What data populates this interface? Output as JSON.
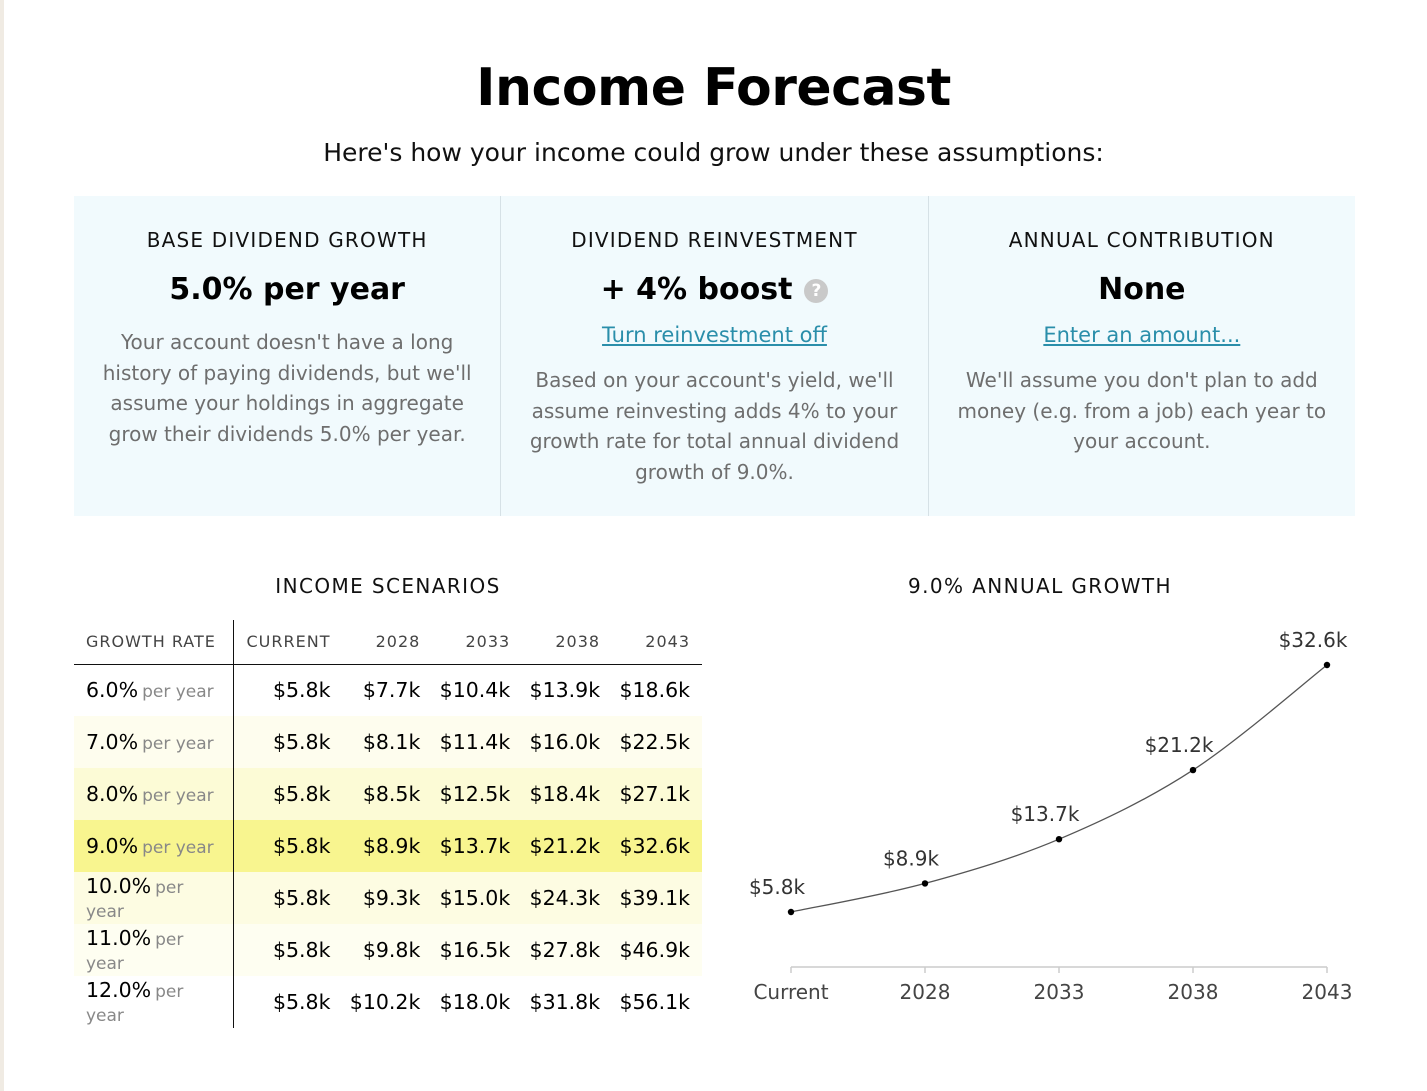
{
  "page": {
    "title": "Income Forecast",
    "subtitle": "Here's how your income could grow under these assumptions:"
  },
  "assumptions": [
    {
      "label": "BASE DIVIDEND GROWTH",
      "value": "5.0% per year",
      "description": "Your account doesn't have a long history of paying dividends, but we'll assume your holdings in aggregate grow their dividends 5.0% per year."
    },
    {
      "label": "DIVIDEND REINVESTMENT",
      "value": "+ 4% boost",
      "help_icon": "question-circle-icon",
      "link": "Turn reinvestment off",
      "description": "Based on your account's yield, we'll assume reinvesting adds 4% to your growth rate for total annual dividend growth of 9.0%."
    },
    {
      "label": "ANNUAL CONTRIBUTION",
      "value": "None",
      "link": "Enter an amount...",
      "description": "We'll assume you don't plan to add money (e.g. from a job) each year to your account."
    }
  ],
  "scenarios": {
    "title": "INCOME SCENARIOS",
    "headers": [
      "GROWTH RATE",
      "CURRENT",
      "2028",
      "2033",
      "2038",
      "2043"
    ],
    "per_year_label": "per year",
    "highlight_row": 3,
    "rows": [
      {
        "rate": "6.0%",
        "values": [
          "$5.8k",
          "$7.7k",
          "$10.4k",
          "$13.9k",
          "$18.6k"
        ]
      },
      {
        "rate": "7.0%",
        "values": [
          "$5.8k",
          "$8.1k",
          "$11.4k",
          "$16.0k",
          "$22.5k"
        ]
      },
      {
        "rate": "8.0%",
        "values": [
          "$5.8k",
          "$8.5k",
          "$12.5k",
          "$18.4k",
          "$27.1k"
        ]
      },
      {
        "rate": "9.0%",
        "values": [
          "$5.8k",
          "$8.9k",
          "$13.7k",
          "$21.2k",
          "$32.6k"
        ]
      },
      {
        "rate": "10.0%",
        "values": [
          "$5.8k",
          "$9.3k",
          "$15.0k",
          "$24.3k",
          "$39.1k"
        ]
      },
      {
        "rate": "11.0%",
        "values": [
          "$5.8k",
          "$9.8k",
          "$16.5k",
          "$27.8k",
          "$46.9k"
        ]
      },
      {
        "rate": "12.0%",
        "values": [
          "$5.8k",
          "$10.2k",
          "$18.0k",
          "$31.8k",
          "$56.1k"
        ]
      }
    ]
  },
  "chart_data": {
    "type": "line",
    "title": "9.0% ANNUAL GROWTH",
    "categories": [
      "Current",
      "2028",
      "2033",
      "2038",
      "2043"
    ],
    "values": [
      5.8,
      8.9,
      13.7,
      21.2,
      32.6
    ],
    "labels": [
      "$5.8k",
      "$8.9k",
      "$13.7k",
      "$21.2k",
      "$32.6k"
    ],
    "xlabel": "",
    "ylabel": "",
    "ylim": [
      0,
      32.6
    ],
    "grid": false,
    "line_color": "#555555"
  }
}
